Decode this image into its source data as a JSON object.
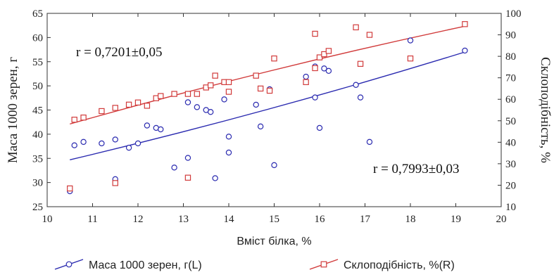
{
  "chart_data": {
    "type": "scatter",
    "xlabel": "Вміст білка, %",
    "ylabel_left": "Маса 1000 зерен, г",
    "ylabel_right": "Склоподібність, %",
    "xlim": [
      10,
      20
    ],
    "ylim_left": [
      25,
      65
    ],
    "ylim_right": [
      10,
      100
    ],
    "x_ticks": [
      10,
      11,
      12,
      13,
      14,
      15,
      16,
      17,
      18,
      19,
      20
    ],
    "y_left_ticks": [
      25,
      30,
      35,
      40,
      45,
      50,
      55,
      60,
      65
    ],
    "y_right_ticks": [
      10,
      20,
      30,
      40,
      50,
      60,
      70,
      80,
      90,
      100
    ],
    "grid": false,
    "legend_position": "bottom",
    "annotations": [
      {
        "text": "r = 0,7201±0,05",
        "series": "Склоподібність, %(R)"
      },
      {
        "text": "r = 0,7993±0,03",
        "series": "Маса 1000 зерен, г(L)"
      }
    ],
    "series": [
      {
        "name": "Маса 1000 зерен, г(L)",
        "axis": "left",
        "marker": "circle",
        "color": "#2b2bb0",
        "points": [
          [
            10.5,
            28.2
          ],
          [
            10.6,
            37.7
          ],
          [
            10.8,
            38.4
          ],
          [
            11.2,
            38.1
          ],
          [
            11.5,
            38.9
          ],
          [
            11.5,
            30.7
          ],
          [
            11.8,
            37.2
          ],
          [
            12.0,
            38.1
          ],
          [
            12.2,
            41.8
          ],
          [
            12.4,
            41.3
          ],
          [
            12.5,
            41.0
          ],
          [
            12.8,
            33.1
          ],
          [
            13.1,
            46.6
          ],
          [
            13.1,
            35.1
          ],
          [
            13.3,
            45.6
          ],
          [
            13.5,
            45.0
          ],
          [
            13.6,
            44.6
          ],
          [
            13.7,
            30.9
          ],
          [
            13.9,
            47.2
          ],
          [
            14.0,
            39.5
          ],
          [
            14.0,
            36.2
          ],
          [
            14.6,
            46.1
          ],
          [
            14.7,
            41.6
          ],
          [
            14.9,
            49.3
          ],
          [
            15.0,
            33.6
          ],
          [
            15.7,
            51.9
          ],
          [
            15.9,
            54.0
          ],
          [
            15.9,
            47.6
          ],
          [
            16.0,
            41.3
          ],
          [
            16.1,
            53.6
          ],
          [
            16.2,
            53.1
          ],
          [
            16.8,
            50.2
          ],
          [
            16.9,
            47.6
          ],
          [
            17.1,
            38.4
          ],
          [
            18.0,
            59.4
          ],
          [
            19.2,
            57.3
          ]
        ],
        "trend": {
          "x_start": 10.5,
          "x_end": 19.2,
          "y_start": 34.7,
          "y_end": 57.0
        }
      },
      {
        "name": "Склоподібність, %(R)",
        "axis": "right",
        "marker": "square",
        "color": "#d13b3b",
        "points": [
          [
            10.5,
            18.5
          ],
          [
            10.6,
            50.5
          ],
          [
            10.8,
            51.5
          ],
          [
            11.2,
            54.5
          ],
          [
            11.5,
            56.0
          ],
          [
            11.5,
            21.0
          ],
          [
            11.8,
            57.5
          ],
          [
            12.0,
            58.5
          ],
          [
            12.2,
            57.0
          ],
          [
            12.4,
            60.5
          ],
          [
            12.5,
            61.5
          ],
          [
            12.8,
            62.5
          ],
          [
            13.1,
            62.5
          ],
          [
            13.1,
            23.5
          ],
          [
            13.3,
            62.5
          ],
          [
            13.5,
            65.5
          ],
          [
            13.6,
            66.5
          ],
          [
            13.7,
            71.0
          ],
          [
            13.9,
            68.0
          ],
          [
            14.0,
            68.0
          ],
          [
            14.0,
            63.5
          ],
          [
            14.6,
            71.0
          ],
          [
            14.7,
            65.0
          ],
          [
            14.9,
            64.0
          ],
          [
            15.0,
            79.0
          ],
          [
            15.7,
            68.0
          ],
          [
            15.9,
            74.5
          ],
          [
            15.9,
            90.5
          ],
          [
            16.0,
            79.5
          ],
          [
            16.1,
            81.0
          ],
          [
            16.2,
            82.5
          ],
          [
            16.8,
            93.5
          ],
          [
            16.9,
            76.5
          ],
          [
            17.1,
            90.0
          ],
          [
            18.0,
            79.0
          ],
          [
            19.2,
            95.0
          ]
        ],
        "trend": {
          "x_start": 10.5,
          "x_end": 19.2,
          "y_start": 48.5,
          "y_end": 94.0
        }
      }
    ]
  }
}
